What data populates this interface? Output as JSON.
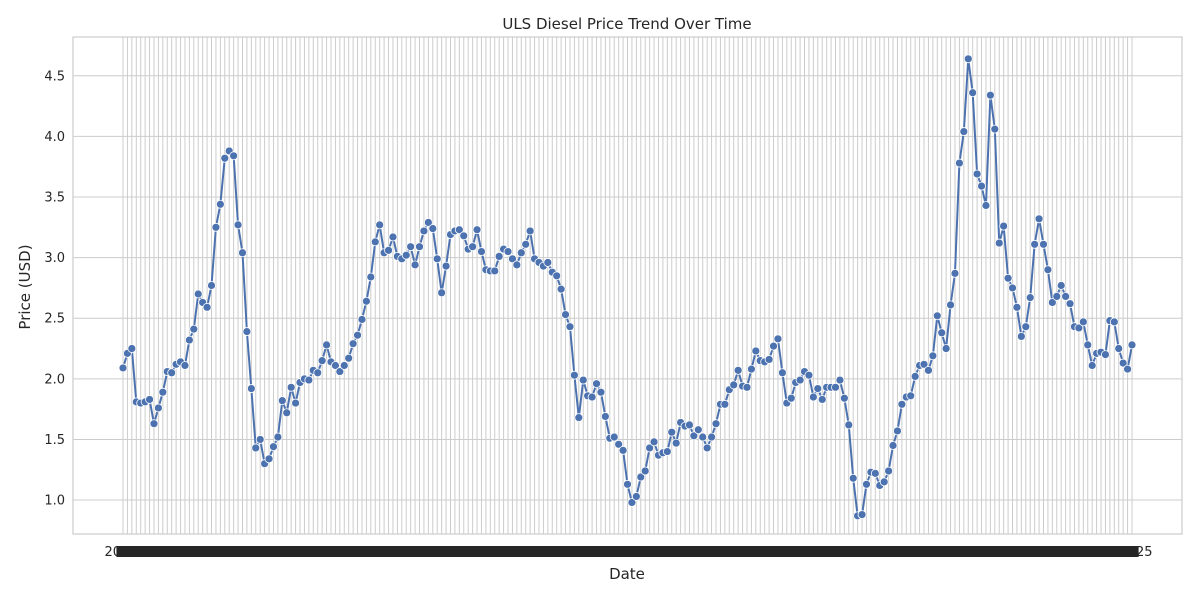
{
  "chart_data": {
    "type": "line",
    "title": "ULS Diesel Price Trend Over Time",
    "xlabel": "Date",
    "ylabel": "Price (USD)",
    "ylim": [
      0.72,
      4.82
    ],
    "yticks": [
      "1.0",
      "1.5",
      "2.0",
      "2.5",
      "3.0",
      "3.5",
      "4.0",
      "4.5"
    ],
    "grid": true,
    "legend": "none",
    "colors": {
      "line": "#4c72b0",
      "grid": "#cccccc"
    },
    "xtick_note": "one tick per data point; labels overlap into an unreadable band",
    "xtick_label_first": "2006",
    "xtick_label_last": "2025",
    "series": [
      {
        "values": [
          2.09,
          2.21,
          2.25,
          1.81,
          1.8,
          1.81,
          1.83,
          1.63,
          1.76,
          1.89,
          2.06,
          2.05,
          2.12,
          2.14,
          2.11,
          2.32,
          2.41,
          2.7,
          2.63,
          2.59,
          2.77,
          3.25,
          3.44,
          3.82,
          3.88,
          3.84,
          3.27,
          3.04,
          2.39,
          1.92,
          1.43,
          1.5,
          1.3,
          1.34,
          1.44,
          1.52,
          1.82,
          1.72,
          1.93,
          1.8,
          1.97,
          2.0,
          1.99,
          2.07,
          2.05,
          2.15,
          2.28,
          2.14,
          2.11,
          2.06,
          2.11,
          2.17,
          2.29,
          2.36,
          2.49,
          2.64,
          2.84,
          3.13,
          3.27,
          3.04,
          3.06,
          3.17,
          3.01,
          2.99,
          3.02,
          3.09,
          2.94,
          3.09,
          3.22,
          3.29,
          3.24,
          2.99,
          2.71,
          2.93,
          3.19,
          3.22,
          3.23,
          3.18,
          3.07,
          3.09,
          3.23,
          3.05,
          2.9,
          2.89,
          2.89,
          3.01,
          3.07,
          3.05,
          2.99,
          2.94,
          3.04,
          3.11,
          3.22,
          2.99,
          2.96,
          2.93,
          2.96,
          2.88,
          2.85,
          2.74,
          2.53,
          2.43,
          2.03,
          1.68,
          1.99,
          1.86,
          1.85,
          1.96,
          1.89,
          1.69,
          1.51,
          1.52,
          1.46,
          1.41,
          1.13,
          0.98,
          1.03,
          1.19,
          1.24,
          1.43,
          1.48,
          1.37,
          1.39,
          1.4,
          1.56,
          1.47,
          1.64,
          1.61,
          1.62,
          1.53,
          1.58,
          1.52,
          1.43,
          1.52,
          1.63,
          1.79,
          1.79,
          1.91,
          1.95,
          2.07,
          1.94,
          1.93,
          2.08,
          2.23,
          2.15,
          2.14,
          2.16,
          2.27,
          2.33,
          2.05,
          1.8,
          1.84,
          1.97,
          1.99,
          2.06,
          2.03,
          1.85,
          1.92,
          1.83,
          1.93,
          1.93,
          1.93,
          1.99,
          1.84,
          1.62,
          1.18,
          0.87,
          0.88,
          1.13,
          1.23,
          1.22,
          1.12,
          1.15,
          1.24,
          1.45,
          1.57,
          1.79,
          1.85,
          1.86,
          2.02,
          2.11,
          2.12,
          2.07,
          2.19,
          2.52,
          2.38,
          2.25,
          2.61,
          2.87,
          3.78,
          4.04,
          4.64,
          4.36,
          3.69,
          3.59,
          3.43,
          4.34,
          4.06,
          3.12,
          3.26,
          2.83,
          2.75,
          2.59,
          2.35,
          2.43,
          2.67,
          3.11,
          3.32,
          3.11,
          2.9,
          2.63,
          2.68,
          2.77,
          2.68,
          2.62,
          2.43,
          2.42,
          2.47,
          2.28,
          2.11,
          2.21,
          2.22,
          2.2,
          2.48,
          2.47,
          2.25,
          2.13,
          2.08,
          2.28
        ]
      }
    ]
  }
}
